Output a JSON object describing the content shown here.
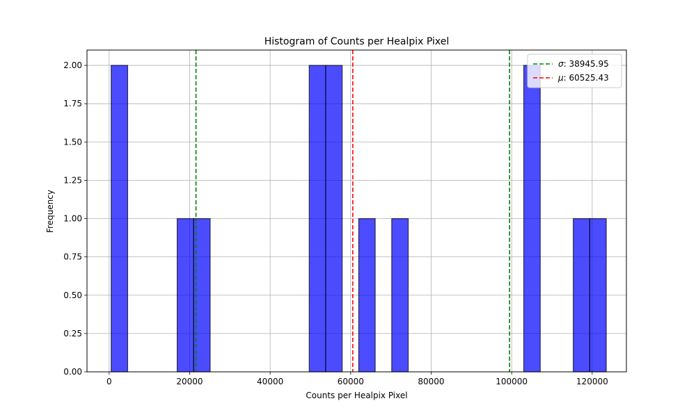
{
  "colors": {
    "bar_fill": "#0000ff",
    "bar_edge": "#000000",
    "grid": "#b0b0b0",
    "sigma_line": "#008000",
    "mu_line": "#ff0000"
  },
  "chart_data": {
    "type": "bar",
    "title": "Histogram of Counts per Healpix Pixel",
    "xlabel": "Counts per Healpix Pixel",
    "ylabel": "Frequency",
    "xlim": [
      -5500,
      128500
    ],
    "ylim": [
      0,
      2.1
    ],
    "grid": true,
    "legend_position": "top-right",
    "xticks": [
      0,
      20000,
      40000,
      60000,
      80000,
      100000,
      120000
    ],
    "xtick_labels": [
      "0",
      "20000",
      "40000",
      "60000",
      "80000",
      "100000",
      "120000"
    ],
    "yticks": [
      0,
      0.25,
      0.5,
      0.75,
      1.0,
      1.25,
      1.5,
      1.75,
      2.0
    ],
    "ytick_labels": [
      "0.00",
      "0.25",
      "0.50",
      "0.75",
      "1.00",
      "1.25",
      "1.50",
      "1.75",
      "2.00"
    ],
    "bin_edges": [
      500,
      4600,
      8700,
      12800,
      16900,
      21000,
      25100,
      29200,
      33300,
      37400,
      41500,
      45600,
      49700,
      53800,
      57900,
      62000,
      66100,
      70200,
      74300,
      78400,
      82500,
      86600,
      90700,
      94800,
      98900,
      103000,
      107100,
      111200,
      115300,
      119400,
      123500
    ],
    "values": [
      2,
      0,
      0,
      0,
      1,
      1,
      0,
      0,
      0,
      0,
      0,
      0,
      2,
      2,
      0,
      1,
      0,
      1,
      0,
      0,
      0,
      0,
      0,
      0,
      0,
      2,
      0,
      0,
      1,
      1
    ],
    "vlines": [
      {
        "x": 21579.48,
        "style": "dashed",
        "color": "#008000"
      },
      {
        "x": 60525.43,
        "style": "dashed",
        "color": "#ff0000"
      },
      {
        "x": 99471.38,
        "style": "dashed",
        "color": "#008000"
      }
    ],
    "legend": [
      {
        "symbol": "σ",
        "text": ": 38945.95",
        "color": "#008000"
      },
      {
        "symbol": "μ",
        "text": ": 60525.43",
        "color": "#ff0000"
      }
    ]
  }
}
